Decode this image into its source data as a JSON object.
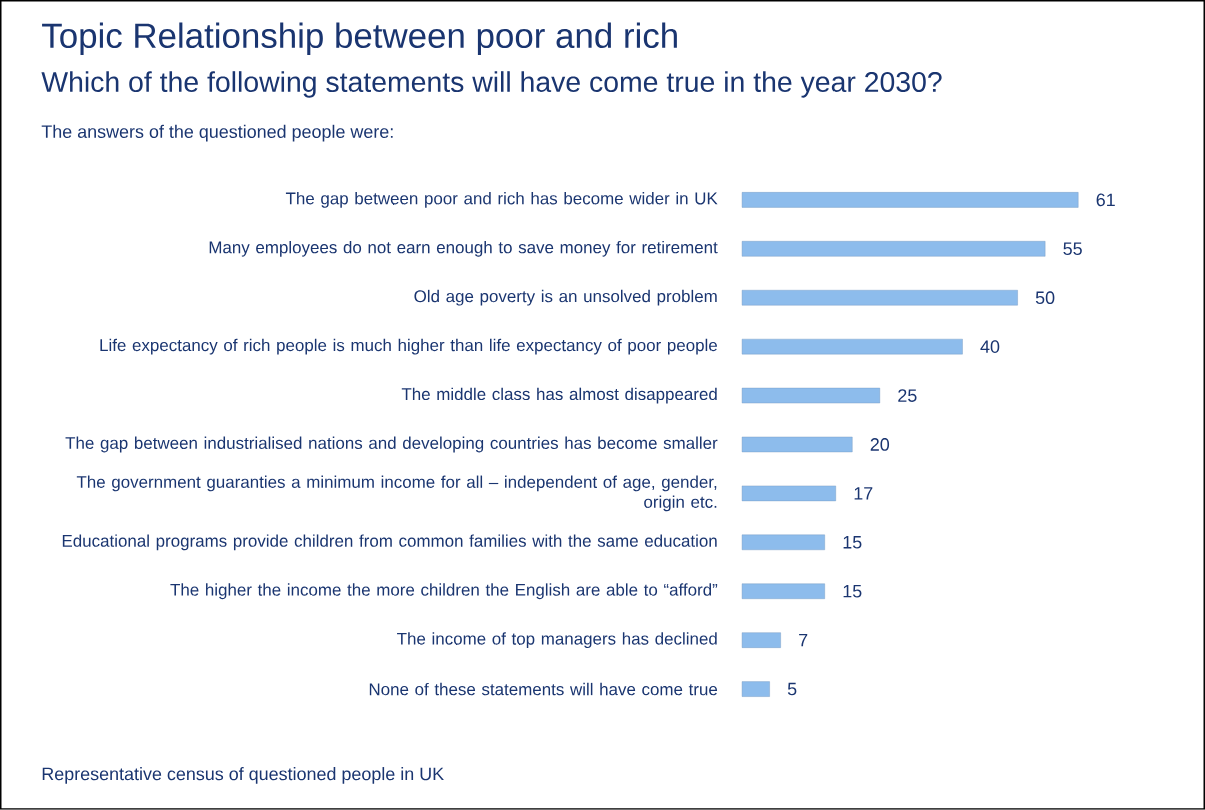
{
  "chart_data": {
    "type": "bar",
    "orientation": "horizontal",
    "title": "Topic Relationship between poor and rich",
    "subtitle": "Which of the following statements will have come true in the year 2030?",
    "annotations": [
      "The answers of the questioned people were:",
      "Representative census of questioned people in UK"
    ],
    "categories": [
      "The gap between poor and rich has become wider in UK",
      "Many employees do not earn enough to save money for retirement",
      "Old age poverty is an unsolved problem",
      "Life expectancy of rich people is much higher than life expectancy of poor people",
      "The middle class has almost disappeared",
      "The gap between industrialised nations and developing countries has become smaller",
      "The government guaranties a minimum income for all – independent of age, gender, origin etc.",
      "Educational programs provide children from common families with the same education",
      "The higher the income the more children the English are able to “afford”",
      "The income of top managers has declined",
      "None of these statements will have come true"
    ],
    "values": [
      61,
      55,
      50,
      40,
      25,
      20,
      17,
      15,
      15,
      7,
      5
    ],
    "color": "#8dbcec",
    "data_labels": true,
    "grid": false
  }
}
